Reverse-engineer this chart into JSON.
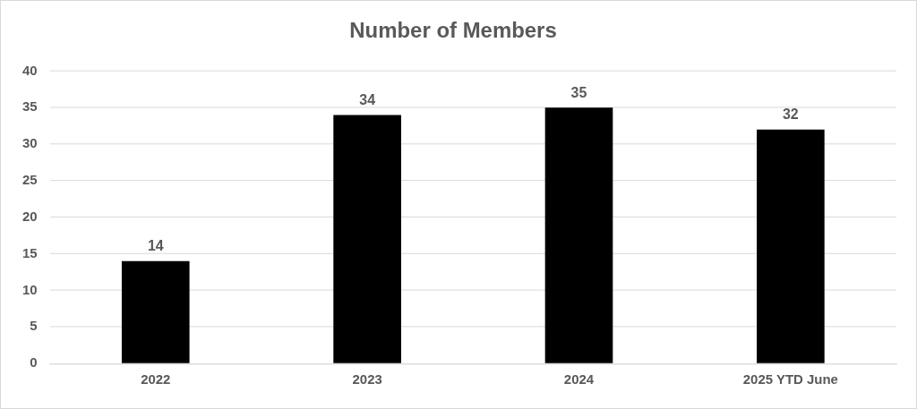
{
  "chart_data": {
    "type": "bar",
    "title": "Number of Members",
    "categories": [
      "2022",
      "2023",
      "2024",
      "2025 YTD June"
    ],
    "values": [
      14,
      34,
      35,
      32
    ],
    "color": "#000000",
    "ylim": [
      0,
      40
    ],
    "yticks": [
      0,
      5,
      10,
      15,
      20,
      25,
      30,
      35,
      40
    ],
    "grid": "y",
    "data_labels": true,
    "legend": false
  }
}
